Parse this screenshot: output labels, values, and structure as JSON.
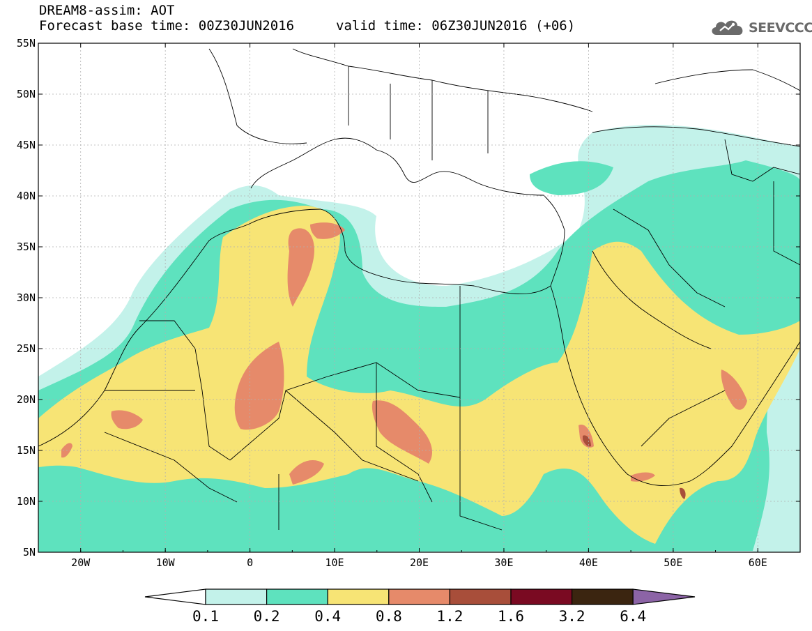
{
  "header": {
    "title": "DREAM8-assim: AOT",
    "base_time_label": "Forecast base time: 00Z30JUN2016",
    "valid_time_label": "valid time: 06Z30JUN2016 (+06)"
  },
  "logo": {
    "text": "SEEVCCC",
    "icon": "cloud-icon"
  },
  "map": {
    "lon_range": [
      -25,
      65
    ],
    "lat_range": [
      5,
      55
    ],
    "lat_ticks": [
      "5N",
      "10N",
      "15N",
      "20N",
      "25N",
      "30N",
      "35N",
      "40N",
      "45N",
      "50N",
      "55N"
    ],
    "lon_ticks": [
      "20W",
      "10W",
      "0",
      "10E",
      "20E",
      "30E",
      "40E",
      "50E",
      "60E"
    ],
    "grid": true
  },
  "colorbar": {
    "levels": [
      "0.1",
      "0.2",
      "0.4",
      "0.8",
      "1.2",
      "1.6",
      "3.2",
      "6.4"
    ],
    "under_color": "#ffffff",
    "colors": [
      "#c3f2ea",
      "#5ee2be",
      "#f7e475",
      "#e68a6a",
      "#a84e3a",
      "#7a0a22",
      "#3b2510"
    ],
    "over_color": "#8c64a6"
  },
  "palette": {
    "ocean": "#ffffff",
    "border": "#000000"
  }
}
